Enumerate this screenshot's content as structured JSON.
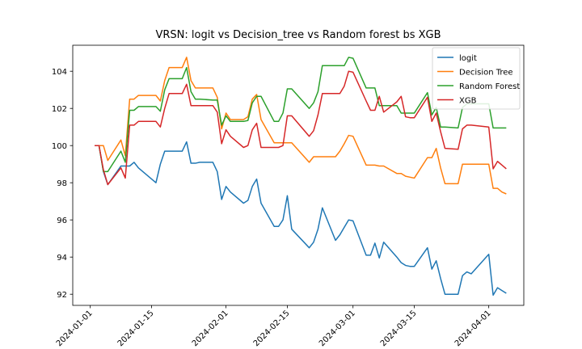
{
  "chart_data": {
    "type": "line",
    "title": "VRSN: logit vs Decision_tree vs Random forest bs XGB",
    "xlabel": "",
    "ylabel": "",
    "x_range": [
      "2023-12-28",
      "2024-04-09"
    ],
    "ylim": [
      91.4,
      105.4
    ],
    "y_ticks": [
      92,
      94,
      96,
      98,
      100,
      102,
      104
    ],
    "x_ticks": [
      "2024-01-01",
      "2024-01-15",
      "2024-02-01",
      "2024-02-15",
      "2024-03-01",
      "2024-03-15",
      "2024-04-01"
    ],
    "grid": false,
    "legend_position": "top-right",
    "x": [
      "2024-01-02",
      "2024-01-03",
      "2024-01-04",
      "2024-01-05",
      "2024-01-08",
      "2024-01-09",
      "2024-01-10",
      "2024-01-11",
      "2024-01-12",
      "2024-01-16",
      "2024-01-17",
      "2024-01-18",
      "2024-01-19",
      "2024-01-22",
      "2024-01-23",
      "2024-01-24",
      "2024-01-25",
      "2024-01-26",
      "2024-01-29",
      "2024-01-30",
      "2024-01-31",
      "2024-02-01",
      "2024-02-02",
      "2024-02-05",
      "2024-02-06",
      "2024-02-07",
      "2024-02-08",
      "2024-02-09",
      "2024-02-12",
      "2024-02-13",
      "2024-02-14",
      "2024-02-15",
      "2024-02-16",
      "2024-02-20",
      "2024-02-21",
      "2024-02-22",
      "2024-02-23",
      "2024-02-26",
      "2024-02-27",
      "2024-02-28",
      "2024-02-29",
      "2024-03-01",
      "2024-03-04",
      "2024-03-05",
      "2024-03-06",
      "2024-03-07",
      "2024-03-08",
      "2024-03-11",
      "2024-03-12",
      "2024-03-13",
      "2024-03-14",
      "2024-03-15",
      "2024-03-18",
      "2024-03-19",
      "2024-03-20",
      "2024-03-21",
      "2024-03-22",
      "2024-03-25",
      "2024-03-26",
      "2024-03-27",
      "2024-03-28",
      "2024-04-01",
      "2024-04-02",
      "2024-04-03",
      "2024-04-04",
      "2024-04-05"
    ],
    "series": [
      {
        "name": "logit",
        "color": "#1f77b4",
        "values": [
          100.0,
          100.0,
          98.6,
          97.9,
          98.9,
          98.9,
          98.9,
          99.1,
          98.8,
          98.0,
          99.0,
          99.7,
          99.7,
          99.7,
          100.2,
          99.05,
          99.05,
          99.1,
          99.1,
          98.6,
          97.1,
          97.8,
          97.5,
          96.9,
          97.05,
          97.8,
          98.2,
          96.9,
          95.65,
          95.65,
          96.0,
          97.3,
          95.5,
          94.5,
          94.8,
          95.5,
          96.65,
          94.9,
          95.2,
          95.6,
          96.0,
          95.95,
          94.1,
          94.1,
          94.75,
          93.95,
          94.8,
          94.0,
          93.7,
          93.55,
          93.5,
          93.5,
          94.5,
          93.35,
          93.8,
          92.85,
          92.0,
          92.0,
          93.0,
          93.2,
          93.1,
          94.15,
          91.95,
          92.35,
          92.2,
          92.05
        ]
      },
      {
        "name": "Decision Tree",
        "color": "#ff7f0e",
        "values": [
          100.0,
          100.0,
          100.0,
          99.2,
          100.3,
          99.45,
          102.5,
          102.5,
          102.7,
          102.7,
          102.4,
          103.5,
          104.2,
          104.2,
          104.75,
          103.5,
          103.1,
          103.1,
          103.1,
          102.6,
          100.9,
          101.75,
          101.4,
          101.4,
          101.55,
          102.5,
          102.75,
          101.4,
          100.15,
          100.15,
          100.15,
          100.15,
          100.15,
          99.1,
          99.4,
          99.4,
          99.4,
          99.4,
          99.7,
          100.1,
          100.55,
          100.5,
          98.95,
          98.95,
          98.95,
          98.9,
          98.9,
          98.5,
          98.5,
          98.35,
          98.3,
          98.25,
          99.35,
          99.35,
          99.85,
          98.8,
          97.95,
          97.95,
          99.0,
          99.0,
          99.0,
          99.0,
          97.7,
          97.7,
          97.5,
          97.4
        ]
      },
      {
        "name": "Random Forest",
        "color": "#2ca02c",
        "values": [
          100.0,
          100.0,
          98.6,
          98.6,
          99.7,
          99.1,
          101.9,
          101.9,
          102.1,
          102.1,
          101.85,
          103.0,
          103.6,
          103.6,
          104.2,
          102.9,
          102.5,
          102.5,
          102.45,
          102.45,
          101.1,
          101.6,
          101.3,
          101.3,
          101.35,
          102.3,
          102.65,
          102.65,
          101.3,
          101.3,
          101.75,
          103.05,
          103.05,
          102.0,
          102.3,
          102.9,
          104.3,
          104.3,
          104.3,
          104.3,
          104.75,
          104.7,
          103.1,
          103.1,
          103.1,
          102.15,
          102.15,
          102.15,
          101.75,
          101.75,
          101.75,
          101.75,
          102.85,
          101.65,
          102.05,
          101.0,
          101.0,
          100.95,
          102.05,
          102.25,
          102.25,
          102.25,
          100.95,
          100.95,
          100.95,
          100.95
        ]
      },
      {
        "name": "XGB",
        "color": "#d62728",
        "values": [
          100.0,
          100.0,
          98.7,
          97.9,
          98.8,
          98.25,
          101.1,
          101.1,
          101.3,
          101.3,
          101.0,
          102.0,
          102.8,
          102.8,
          103.3,
          102.15,
          102.15,
          102.15,
          102.15,
          101.8,
          100.1,
          100.85,
          100.5,
          99.9,
          100.0,
          100.85,
          101.2,
          99.9,
          99.9,
          99.9,
          100.0,
          101.6,
          101.6,
          100.5,
          100.8,
          101.65,
          102.8,
          102.8,
          102.8,
          103.2,
          104.0,
          103.95,
          102.4,
          101.9,
          101.9,
          102.65,
          101.8,
          102.35,
          102.65,
          101.55,
          101.5,
          101.5,
          102.6,
          101.3,
          101.75,
          100.75,
          99.85,
          99.8,
          100.9,
          101.1,
          101.1,
          101.0,
          98.75,
          99.15,
          98.95,
          98.75
        ]
      }
    ]
  }
}
